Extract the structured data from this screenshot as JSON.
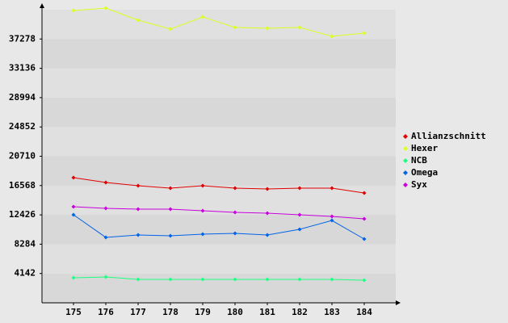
{
  "chart_data": {
    "type": "line",
    "categories": [
      "175",
      "176",
      "177",
      "178",
      "179",
      "180",
      "181",
      "182",
      "183",
      "184"
    ],
    "series": [
      {
        "name": "Allianzschnitt",
        "color": "#e00000",
        "values": [
          17686,
          17001,
          16545,
          16203,
          16545,
          16203,
          16089,
          16203,
          16203,
          15518
        ]
      },
      {
        "name": "Hexer",
        "color": "#dcff1e",
        "values": [
          41304,
          41647,
          39935,
          38680,
          40391,
          38908,
          38794,
          38908,
          37653,
          38110
        ]
      },
      {
        "name": "NCB",
        "color": "#1eff82",
        "values": [
          3537,
          3651,
          3309,
          3309,
          3309,
          3309,
          3309,
          3309,
          3309,
          3195
        ]
      },
      {
        "name": "Omega",
        "color": "#0064e6",
        "values": [
          12437,
          9242,
          9584,
          9470,
          9698,
          9813,
          9584,
          10383,
          11638,
          9014
        ]
      },
      {
        "name": "Syx",
        "color": "#c800dc",
        "values": [
          13578,
          13350,
          13236,
          13236,
          13007,
          12779,
          12665,
          12437,
          12209,
          11866
        ]
      }
    ],
    "ylim": [
      0,
      41420
    ],
    "yticks": [
      4142,
      8284,
      12426,
      16568,
      20710,
      24852,
      28994,
      33136,
      37278
    ],
    "grid": true
  }
}
